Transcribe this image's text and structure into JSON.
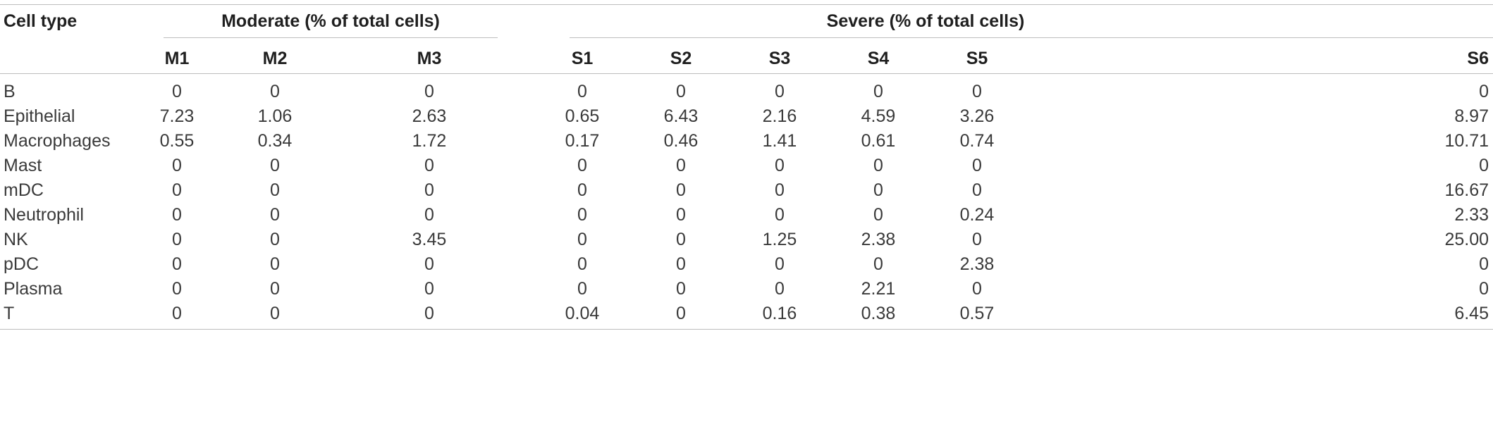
{
  "table": {
    "first_header": "Cell type",
    "groups": [
      {
        "label": "Moderate (% of total cells)"
      },
      {
        "label": "Severe (% of total cells)"
      }
    ],
    "columns": [
      "M1",
      "M2",
      "M3",
      "S1",
      "S2",
      "S3",
      "S4",
      "S5",
      "S6"
    ],
    "rows": [
      {
        "label": "B",
        "values": [
          "0",
          "0",
          "0",
          "0",
          "0",
          "0",
          "0",
          "0",
          "0"
        ]
      },
      {
        "label": "Epithelial",
        "values": [
          "7.23",
          "1.06",
          "2.63",
          "0.65",
          "6.43",
          "2.16",
          "4.59",
          "3.26",
          "8.97"
        ]
      },
      {
        "label": "Macrophages",
        "values": [
          "0.55",
          "0.34",
          "1.72",
          "0.17",
          "0.46",
          "1.41",
          "0.61",
          "0.74",
          "10.71"
        ]
      },
      {
        "label": "Mast",
        "values": [
          "0",
          "0",
          "0",
          "0",
          "0",
          "0",
          "0",
          "0",
          "0"
        ]
      },
      {
        "label": "mDC",
        "values": [
          "0",
          "0",
          "0",
          "0",
          "0",
          "0",
          "0",
          "0",
          "16.67"
        ]
      },
      {
        "label": "Neutrophil",
        "values": [
          "0",
          "0",
          "0",
          "0",
          "0",
          "0",
          "0",
          "0.24",
          "2.33"
        ]
      },
      {
        "label": "NK",
        "values": [
          "0",
          "0",
          "3.45",
          "0",
          "0",
          "1.25",
          "2.38",
          "0",
          "25.00"
        ]
      },
      {
        "label": "pDC",
        "values": [
          "0",
          "0",
          "0",
          "0",
          "0",
          "0",
          "0",
          "2.38",
          "0"
        ]
      },
      {
        "label": "Plasma",
        "values": [
          "0",
          "0",
          "0",
          "0",
          "0",
          "0",
          "2.21",
          "0",
          "0"
        ]
      },
      {
        "label": "T",
        "values": [
          "0",
          "0",
          "0",
          "0.04",
          "0",
          "0.16",
          "0.38",
          "0.57",
          "6.45"
        ]
      }
    ]
  }
}
